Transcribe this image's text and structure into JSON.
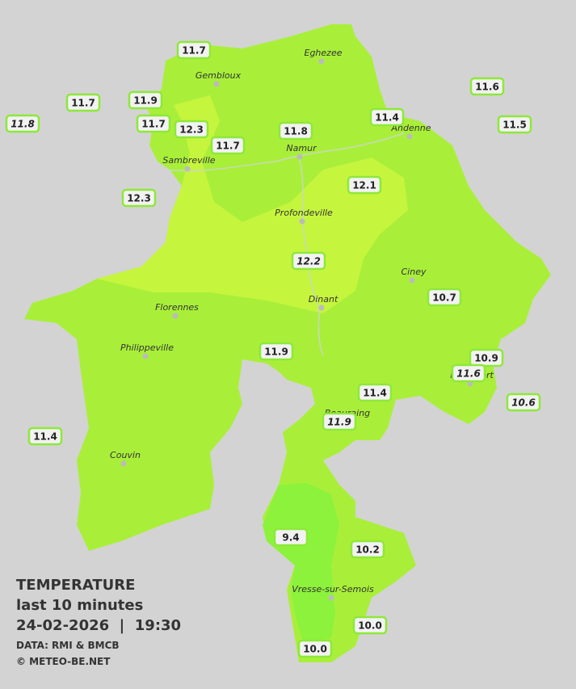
{
  "legend": {
    "title": "TEMPERATURE",
    "subtitle": "last 10 minutes",
    "datetime": "24-02-2026  |  19:30",
    "source": "DATA: RMI & BMCB",
    "copyright": "© METEO-BE.NET"
  },
  "cities": [
    "Eghezee",
    "Gembloux",
    "Andenne",
    "Namur",
    "Sambreville",
    "Profondeville",
    "Ciney",
    "Florennes",
    "Dinant",
    "Philippeville",
    "Rochefort",
    "Beauraing",
    "Couvin",
    "Vresse-sur-Semois"
  ],
  "stations": [
    {
      "value": "11.7"
    },
    {
      "value": "11.7"
    },
    {
      "value": "11.9"
    },
    {
      "value": "11.8",
      "italic": true
    },
    {
      "value": "11.7"
    },
    {
      "value": "12.3"
    },
    {
      "value": "11.7"
    },
    {
      "value": "11.8"
    },
    {
      "value": "11.4"
    },
    {
      "value": "11.6"
    },
    {
      "value": "11.5"
    },
    {
      "value": "12.3"
    },
    {
      "value": "12.1"
    },
    {
      "value": "12.2",
      "italic": true
    },
    {
      "value": "10.7"
    },
    {
      "value": "11.9"
    },
    {
      "value": "10.9"
    },
    {
      "value": "11.6",
      "italic": true
    },
    {
      "value": "10.6",
      "italic": true
    },
    {
      "value": "11.4"
    },
    {
      "value": "11.9",
      "italic": true
    },
    {
      "value": "11.4"
    },
    {
      "value": "9.4"
    },
    {
      "value": "10.2"
    },
    {
      "value": "10.0"
    },
    {
      "value": "10.0"
    }
  ]
}
